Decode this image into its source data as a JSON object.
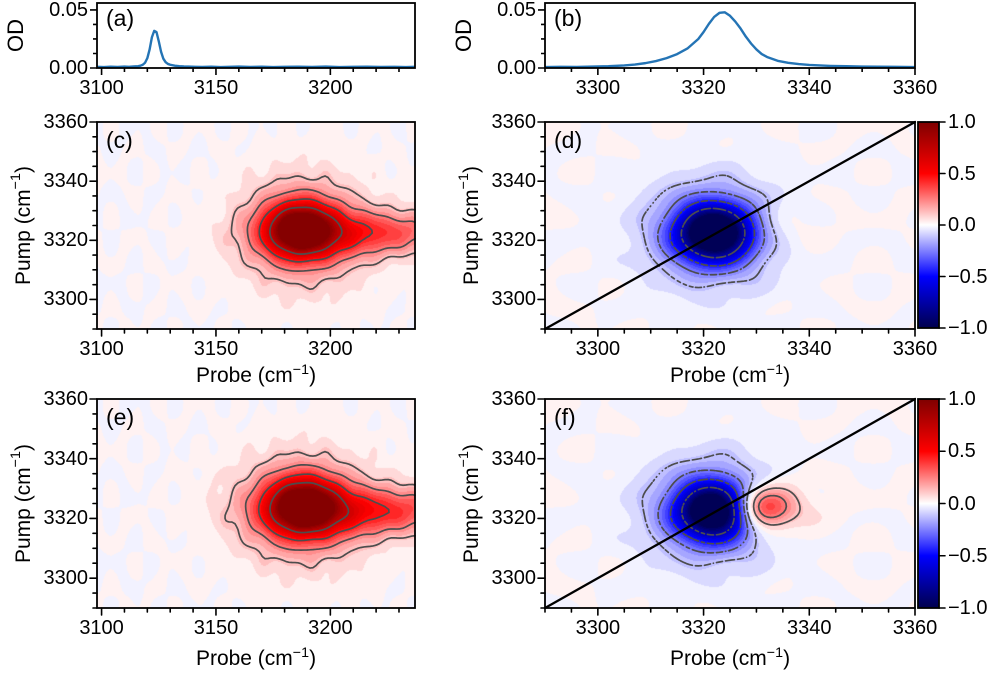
{
  "figure": {
    "background": "#ffffff"
  },
  "colors": {
    "line": "#2474b5",
    "contour_line": "#4d4d4d",
    "diagonal": "#000000",
    "axis": "#000000",
    "cmap_pos_max": "#7f0000",
    "cmap_pos_mid": "#ff0000",
    "cmap_zero": "#ffffff",
    "cmap_neg_mid": "#0000ff",
    "cmap_neg_max": "#00004d"
  },
  "labels": {
    "od": "OD",
    "pump": {
      "pre": "Pump (cm",
      "sup": "−1",
      "post": ")"
    },
    "probe": {
      "pre": "Probe (cm",
      "sup": "−1",
      "post": ")"
    }
  },
  "colorbar": {
    "tick_labels": [
      "1.0",
      "0.5",
      "0.0",
      "−0.5",
      "−1.0"
    ],
    "tick_vals": [
      1.0,
      0.5,
      0.0,
      -0.5,
      -1.0
    ],
    "range": [
      -1.0,
      1.0
    ],
    "stops": [
      [
        0,
        "#7f0000"
      ],
      [
        0.25,
        "#ff0000"
      ],
      [
        0.5,
        "#ffffff"
      ],
      [
        0.75,
        "#0000ff"
      ],
      [
        1,
        "#00004d"
      ]
    ]
  },
  "chart_data": [
    {
      "id": "a",
      "panel_label": "(a)",
      "type": "line",
      "ylabel": "OD",
      "xlim": [
        3098,
        3237
      ],
      "ylim": [
        0,
        0.056
      ],
      "xtick_vals": [
        3100,
        3150,
        3200
      ],
      "xtick_labels": [
        "3100",
        "3150",
        "3200"
      ],
      "xminor_step": 10,
      "ytick_vals": [
        0,
        0.05
      ],
      "ytick_labels": [
        "0.00",
        "0.05"
      ],
      "yminor_vals": [
        0.0125,
        0.025,
        0.0375
      ],
      "peak_center": 3123,
      "peak_height": 0.032,
      "x": [
        3098,
        3101,
        3104,
        3107,
        3110,
        3112,
        3114,
        3116,
        3117,
        3118,
        3119,
        3120,
        3121,
        3122,
        3123,
        3124,
        3125,
        3126,
        3127,
        3128,
        3129,
        3130,
        3132,
        3134,
        3136,
        3138,
        3141,
        3144,
        3148,
        3152,
        3156,
        3160,
        3165,
        3170,
        3175,
        3180,
        3186,
        3192,
        3198,
        3204,
        3210,
        3216,
        3222,
        3228,
        3233,
        3237
      ],
      "y": [
        0.001,
        0.0008,
        0.0011,
        0.0009,
        0.0012,
        0.001,
        0.0013,
        0.0016,
        0.002,
        0.0028,
        0.0045,
        0.0085,
        0.016,
        0.0265,
        0.032,
        0.031,
        0.023,
        0.014,
        0.008,
        0.005,
        0.0035,
        0.0028,
        0.002,
        0.0016,
        0.0013,
        0.0012,
        0.001,
        0.0009,
        0.0011,
        0.0008,
        0.001,
        0.0012,
        0.0009,
        0.0011,
        0.0008,
        0.001,
        0.0011,
        0.0009,
        0.0012,
        0.0008,
        0.001,
        0.0011,
        0.0009,
        0.001,
        0.0008,
        0.001
      ]
    },
    {
      "id": "b",
      "panel_label": "(b)",
      "type": "line",
      "ylabel": "OD",
      "xlim": [
        3290,
        3360
      ],
      "ylim": [
        0,
        0.056
      ],
      "xtick_vals": [
        3300,
        3320,
        3340,
        3360
      ],
      "xtick_labels": [
        "3300",
        "3320",
        "3340",
        "3360"
      ],
      "xminor_step": 5,
      "ytick_vals": [
        0,
        0.05
      ],
      "ytick_labels": [
        "0.00",
        "0.05"
      ],
      "yminor_vals": [
        0.0125,
        0.025,
        0.0375
      ],
      "peak_center": 3323.5,
      "peak_height": 0.048,
      "x": [
        3290,
        3293,
        3296,
        3299,
        3302,
        3305,
        3307,
        3309,
        3311,
        3313,
        3315,
        3317,
        3319,
        3320,
        3321,
        3322,
        3323,
        3324,
        3325,
        3326,
        3327,
        3328,
        3329,
        3330,
        3331,
        3332,
        3334,
        3336,
        3338,
        3340,
        3342,
        3344,
        3347,
        3350,
        3353,
        3356,
        3358,
        3360
      ],
      "y": [
        0.0008,
        0.001,
        0.0009,
        0.0012,
        0.0015,
        0.0022,
        0.003,
        0.0042,
        0.006,
        0.0085,
        0.012,
        0.017,
        0.025,
        0.031,
        0.038,
        0.044,
        0.0475,
        0.048,
        0.045,
        0.04,
        0.034,
        0.027,
        0.021,
        0.016,
        0.012,
        0.0095,
        0.0062,
        0.0045,
        0.0034,
        0.0026,
        0.0022,
        0.0018,
        0.0015,
        0.0012,
        0.0011,
        0.001,
        0.0009,
        0.0008
      ]
    },
    {
      "id": "c",
      "panel_label": "(c)",
      "type": "contour",
      "xlabel": "Probe (cm-1)",
      "ylabel": "Pump (cm-1)",
      "xlim": [
        3098,
        3237
      ],
      "ylim": [
        3290,
        3360
      ],
      "xtick_vals": [
        3100,
        3150,
        3200
      ],
      "xtick_labels": [
        "3100",
        "3150",
        "3200"
      ],
      "xminor_step": 10,
      "ytick_vals": [
        3300,
        3320,
        3340,
        3360
      ],
      "ytick_labels": [
        "3300",
        "3320",
        "3340",
        "3360"
      ],
      "yminor_step": 5,
      "zrange": [
        -1,
        1
      ],
      "band_step": 0.05,
      "noise_amp": 0.016,
      "diagonal": false,
      "blobs": [
        {
          "amp": 0.95,
          "x0": 3187,
          "sx": 10,
          "y0": 3323.5,
          "sy": 6
        },
        {
          "amp": 0.32,
          "x0": 3188,
          "sx": 19,
          "y0": 3323,
          "sy": 12.5
        },
        {
          "amp": 0.36,
          "x0": 3218,
          "sx": 27,
          "y0": 3322.5,
          "sy": 5.2
        }
      ],
      "contour_sets": [
        {
          "levels": [
            0.12,
            0.25,
            0.45,
            0.72
          ],
          "style": "solid"
        }
      ]
    },
    {
      "id": "d",
      "panel_label": "(d)",
      "type": "contour",
      "xlabel": "Probe (cm-1)",
      "ylabel": "Pump (cm-1)",
      "xlim": [
        3290,
        3360
      ],
      "ylim": [
        3290,
        3360
      ],
      "xtick_vals": [
        3300,
        3320,
        3340,
        3360
      ],
      "xtick_labels": [
        "3300",
        "3320",
        "3340",
        "3360"
      ],
      "xminor_step": 5,
      "ytick_vals": [
        3300,
        3320,
        3340,
        3360
      ],
      "ytick_labels": [
        "3300",
        "3320",
        "3340",
        "3360"
      ],
      "yminor_step": 5,
      "zrange": [
        -1,
        1
      ],
      "band_step": 0.05,
      "noise_amp": 0.016,
      "diagonal": true,
      "blobs": [
        {
          "amp": -1.1,
          "x0": 3322,
          "sx": 4.6,
          "y0": 3322.5,
          "sy": 6.2
        },
        {
          "amp": -0.34,
          "x0": 3321.5,
          "sx": 8.5,
          "y0": 3322.5,
          "sy": 12
        },
        {
          "amp": 0.07,
          "x0": 3334.5,
          "sx": 5.5,
          "y0": 3324,
          "sy": 6
        }
      ],
      "contour_sets": [
        {
          "levels": [
            -0.72,
            -0.45,
            -0.25,
            -0.12
          ],
          "style": "dashed"
        }
      ]
    },
    {
      "id": "e",
      "panel_label": "(e)",
      "type": "contour",
      "xlabel": "Probe (cm-1)",
      "ylabel": "Pump (cm-1)",
      "xlim": [
        3098,
        3237
      ],
      "ylim": [
        3290,
        3360
      ],
      "xtick_vals": [
        3100,
        3150,
        3200
      ],
      "xtick_labels": [
        "3100",
        "3150",
        "3200"
      ],
      "xminor_step": 10,
      "ytick_vals": [
        3300,
        3320,
        3340,
        3360
      ],
      "ytick_labels": [
        "3300",
        "3320",
        "3340",
        "3360"
      ],
      "yminor_step": 5,
      "zrange": [
        -1,
        1
      ],
      "band_step": 0.05,
      "noise_amp": 0.016,
      "diagonal": false,
      "blobs": [
        {
          "amp": 0.95,
          "x0": 3188,
          "sx": 10.5,
          "y0": 3324,
          "sy": 6.3
        },
        {
          "amp": 0.32,
          "x0": 3188,
          "sx": 20,
          "y0": 3323,
          "sy": 12.5
        },
        {
          "amp": 0.4,
          "x0": 3220,
          "sx": 28,
          "y0": 3322.5,
          "sy": 5.5
        }
      ],
      "contour_sets": [
        {
          "levels": [
            0.12,
            0.25,
            0.45,
            0.72
          ],
          "style": "solid"
        }
      ]
    },
    {
      "id": "f",
      "panel_label": "(f)",
      "type": "contour",
      "xlabel": "Probe (cm-1)",
      "ylabel": "Pump (cm-1)",
      "xlim": [
        3290,
        3360
      ],
      "ylim": [
        3290,
        3360
      ],
      "xtick_vals": [
        3300,
        3320,
        3340,
        3360
      ],
      "xtick_labels": [
        "3300",
        "3320",
        "3340",
        "3360"
      ],
      "xminor_step": 5,
      "ytick_vals": [
        3300,
        3320,
        3340,
        3360
      ],
      "ytick_labels": [
        "3300",
        "3320",
        "3340",
        "3360"
      ],
      "yminor_step": 5,
      "zrange": [
        -1,
        1
      ],
      "band_step": 0.05,
      "noise_amp": 0.016,
      "diagonal": true,
      "blobs": [
        {
          "amp": -1.1,
          "x0": 3322,
          "sx": 4.6,
          "y0": 3322.5,
          "sy": 6.2
        },
        {
          "amp": -0.34,
          "x0": 3321.5,
          "sx": 8.5,
          "y0": 3322.5,
          "sy": 12
        },
        {
          "amp": 0.55,
          "x0": 3330.5,
          "sx": 4.2,
          "y0": 3323.5,
          "sy": 4.8
        },
        {
          "amp": 0.1,
          "x0": 3331.5,
          "sx": 8,
          "y0": 3323.5,
          "sy": 8
        }
      ],
      "contour_sets": [
        {
          "levels": [
            -0.72,
            -0.45,
            -0.25,
            -0.12
          ],
          "style": "dashed"
        },
        {
          "levels": [
            0.12,
            0.25,
            0.45
          ],
          "style": "solid"
        }
      ]
    }
  ]
}
